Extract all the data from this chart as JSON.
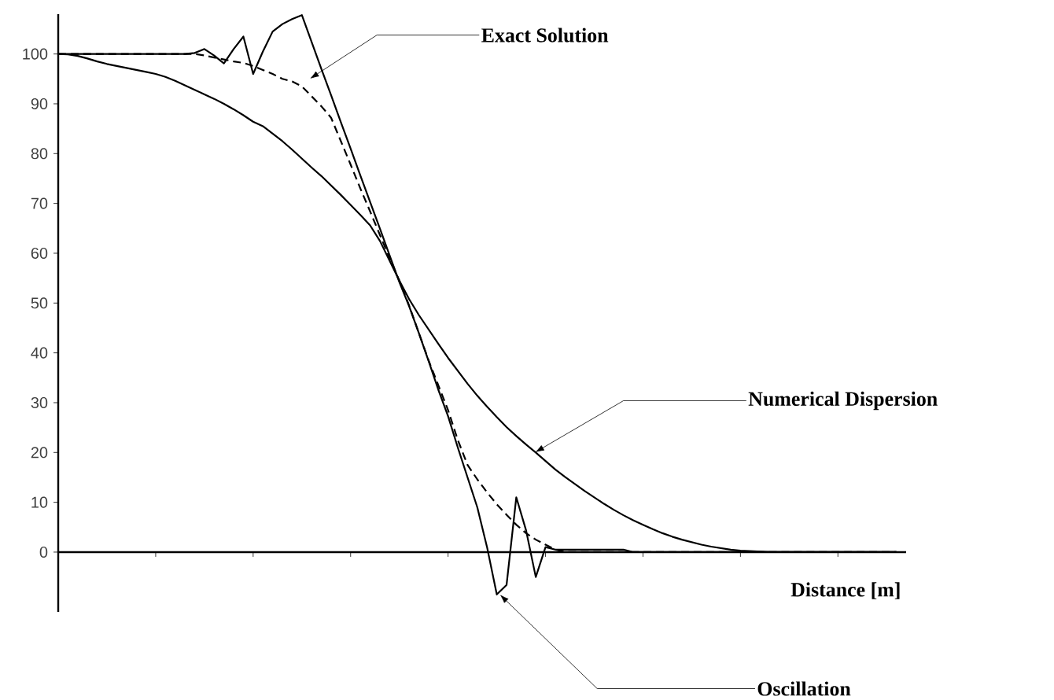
{
  "chart_data": {
    "type": "line",
    "xlabel": "Distance [m]",
    "categories": [
      null,
      null,
      null,
      null,
      null,
      null,
      null,
      null,
      null,
      null,
      null,
      null,
      null,
      null,
      null,
      null,
      null,
      null,
      null,
      null,
      null,
      null,
      null,
      null,
      null,
      null,
      null,
      null,
      null,
      null,
      null,
      null,
      null,
      null,
      null,
      null,
      null,
      null,
      null,
      null,
      null,
      null,
      null,
      null,
      null,
      null,
      null,
      null,
      null,
      null,
      null,
      null,
      null,
      null,
      null,
      null,
      null,
      null,
      null,
      null,
      null,
      null,
      null,
      null,
      null,
      null,
      null,
      null,
      null,
      null,
      null,
      null,
      null,
      null,
      null,
      null,
      null,
      null,
      null,
      null,
      null,
      null,
      null,
      null,
      null,
      null,
      null
    ],
    "ylim": [
      -12,
      108
    ],
    "yticks": [
      0,
      10,
      20,
      30,
      40,
      50,
      60,
      70,
      80,
      90,
      100
    ],
    "tick_labels": "y",
    "marker": "none",
    "series": [
      {
        "color": "#000000",
        "line_style": "solid",
        "values": [
          100,
          100,
          100,
          100,
          100,
          100,
          100,
          100,
          100,
          100,
          100,
          100,
          100,
          100,
          100.2,
          101,
          99.7,
          98.1,
          101,
          103.5,
          96,
          100.5,
          104.5,
          106,
          107,
          107.8,
          102.4,
          97,
          91.7,
          86.3,
          81,
          75.6,
          70.3,
          65,
          59.6,
          54.2,
          49.4,
          44,
          38.4,
          32.6,
          27.3,
          21,
          15,
          9,
          1,
          -8.5,
          -6.6,
          11,
          4.4,
          -5,
          1,
          0.5,
          0.5,
          0.5,
          0.5,
          0.5,
          0.5,
          0.5,
          0.5,
          0,
          0,
          0,
          0,
          0,
          0,
          0,
          0,
          0,
          0,
          0,
          0,
          0,
          0,
          0,
          0,
          0,
          0,
          0,
          0,
          0,
          0,
          0,
          0,
          0,
          0,
          0,
          0
        ]
      },
      {
        "color": "#000000",
        "line_style": "dashed",
        "values": [
          100,
          100,
          100,
          100,
          100,
          100,
          100,
          100,
          100,
          100,
          100,
          100,
          100,
          100,
          100,
          99.7,
          99.3,
          98.9,
          98.5,
          98.2,
          97.6,
          96.8,
          96,
          95,
          94.5,
          93.5,
          91.5,
          89.5,
          87.2,
          82.5,
          77.8,
          73,
          68.4,
          63.7,
          59,
          54.5,
          49.5,
          44,
          38.5,
          33.5,
          28.5,
          22.5,
          17.5,
          14.6,
          12,
          9.6,
          7.5,
          5.5,
          3.8,
          2.5,
          1.5,
          0.5,
          0,
          0,
          0,
          0,
          0,
          0,
          0,
          0,
          0,
          0,
          0,
          0,
          0,
          0,
          0,
          0,
          0,
          0,
          0,
          0,
          0,
          0,
          0,
          0,
          0,
          0,
          0,
          0,
          0,
          0,
          0,
          0,
          0,
          0,
          0
        ]
      },
      {
        "color": "#000000",
        "line_style": "solid",
        "values": [
          100,
          99.9,
          99.6,
          99.1,
          98.5,
          98,
          97.6,
          97.2,
          96.8,
          96.4,
          96,
          95.4,
          94.6,
          93.7,
          92.8,
          91.9,
          91,
          90,
          88.9,
          87.7,
          86.4,
          85.5,
          84,
          82.5,
          80.8,
          79,
          77.2,
          75.5,
          73.6,
          71.7,
          69.7,
          67.7,
          65.6,
          62.5,
          58.5,
          54.5,
          50.8,
          47.6,
          44.7,
          41.8,
          39,
          36.4,
          33.8,
          31.4,
          29.2,
          27.1,
          25.1,
          23.3,
          21.6,
          20,
          18.3,
          16.6,
          15.1,
          13.7,
          12.3,
          11,
          9.7,
          8.5,
          7.4,
          6.4,
          5.5,
          4.6,
          3.8,
          3.1,
          2.5,
          2,
          1.5,
          1.1,
          0.8,
          0.5,
          0.3,
          0.2,
          0.1,
          0,
          0,
          0,
          0,
          0,
          0,
          0,
          0,
          0,
          0,
          0,
          0,
          0,
          0
        ]
      }
    ],
    "annotations": [
      "Exact Solution",
      "Numerical Dispersion",
      "Oscillation"
    ]
  }
}
